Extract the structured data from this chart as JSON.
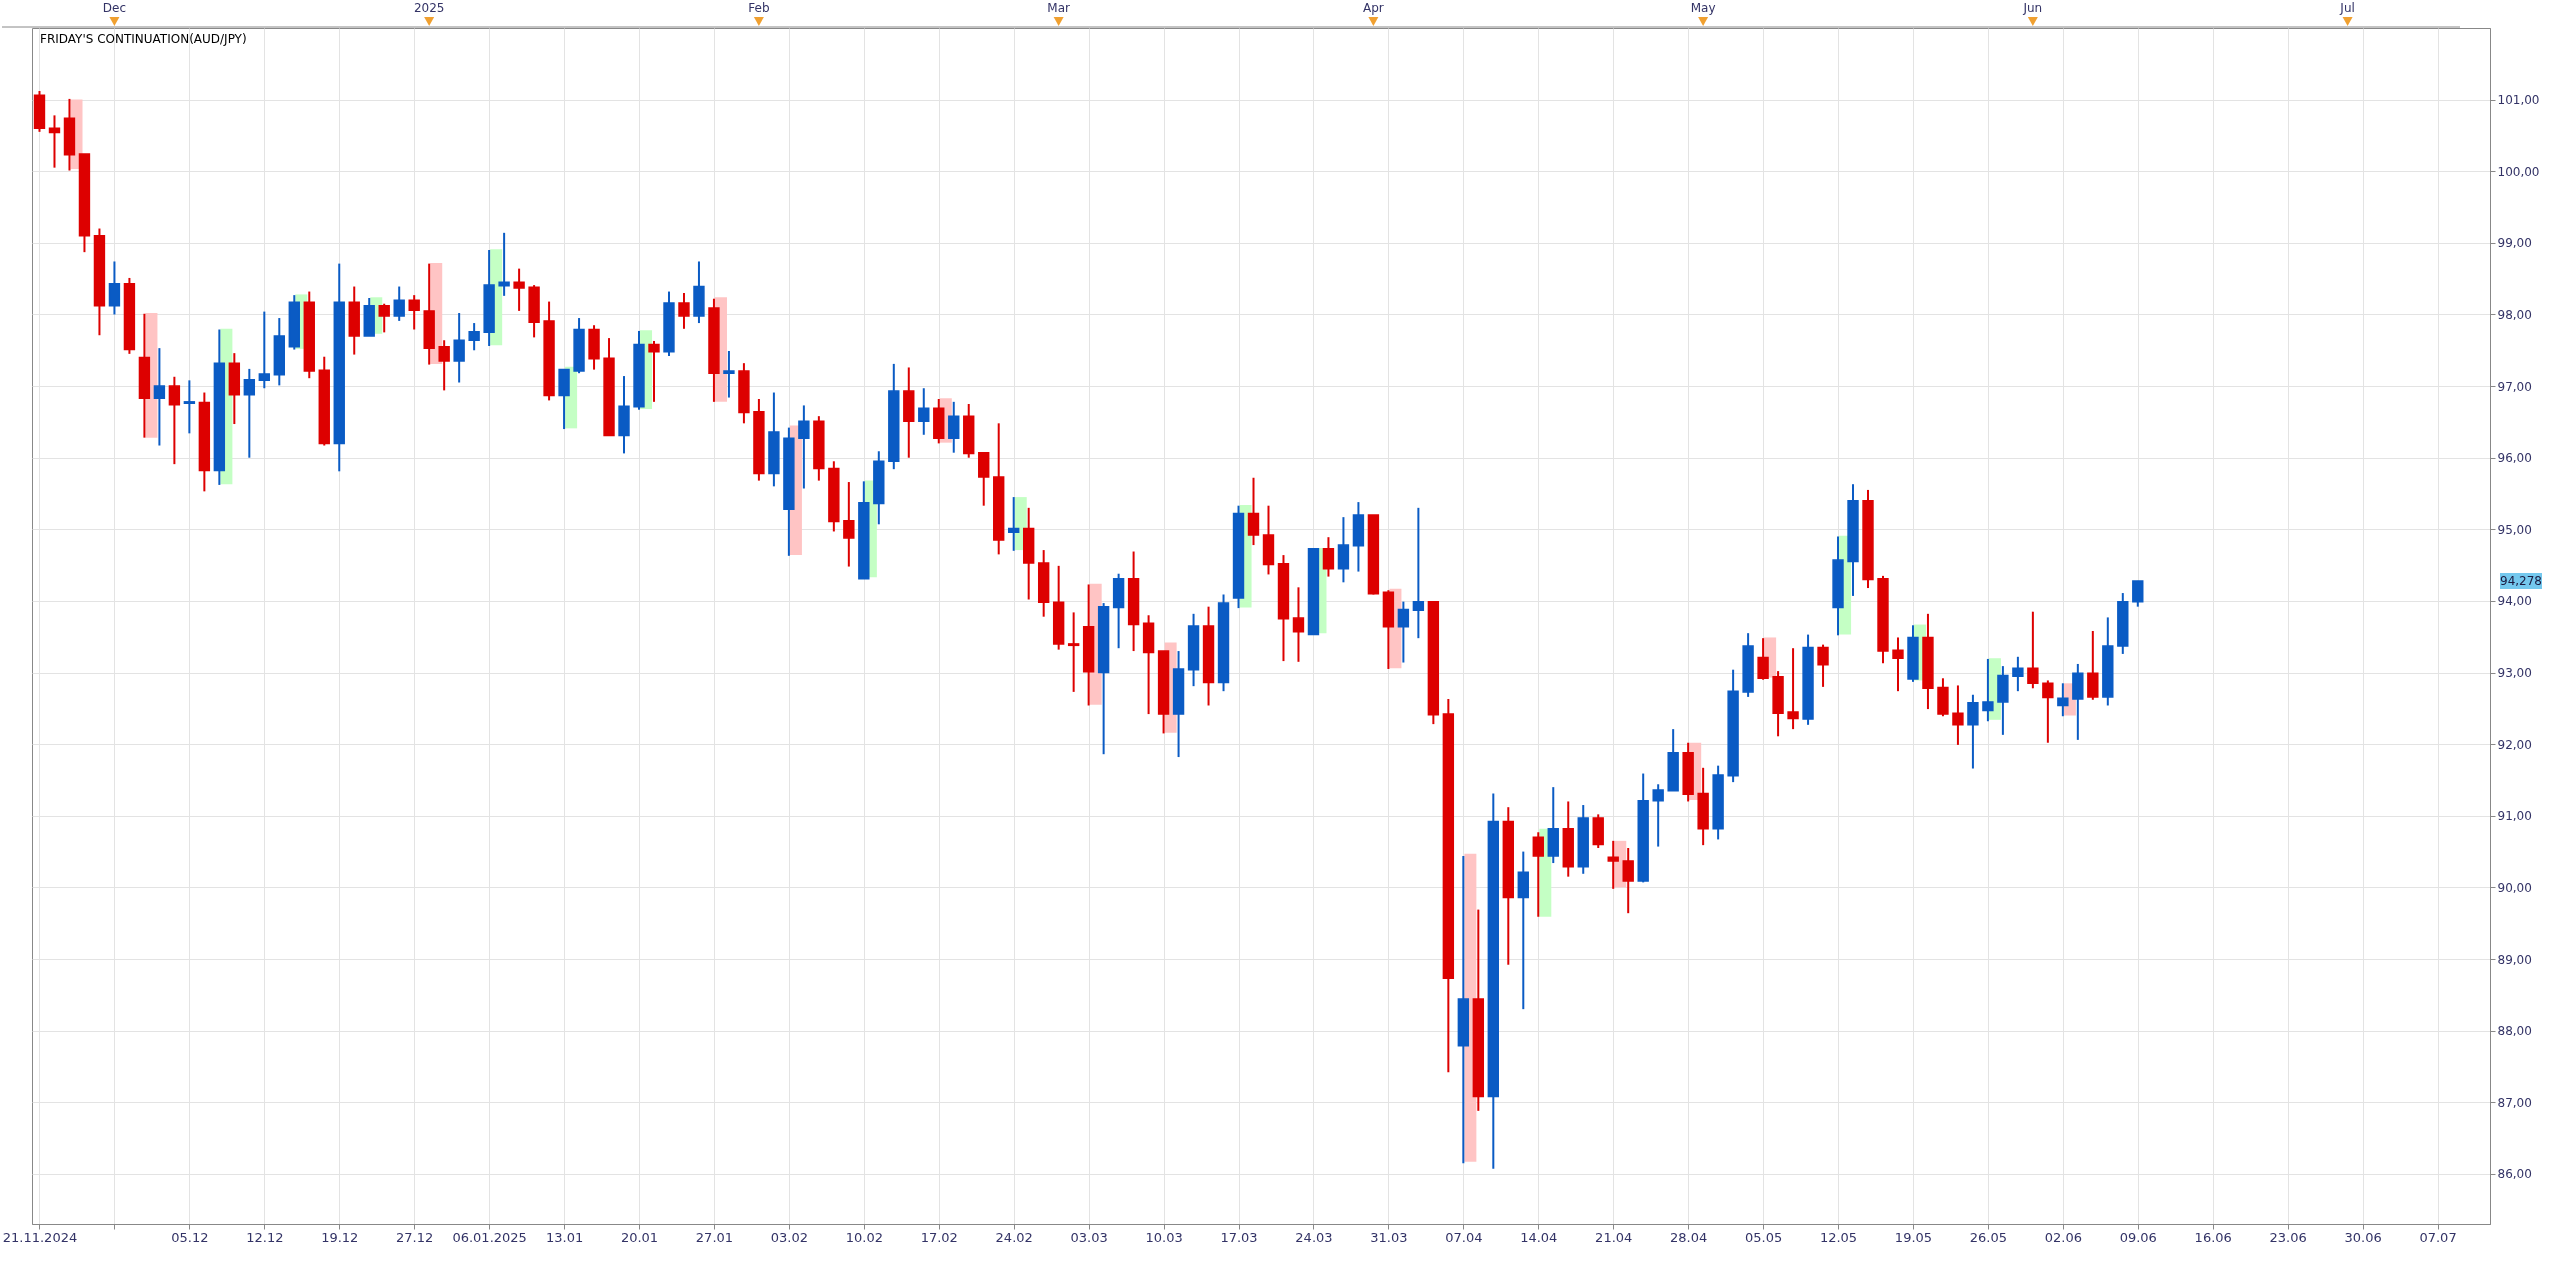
{
  "chart_data": {
    "type": "candlestick",
    "title": "FRIDAY'S CONTINUATION(AUD/JPY)",
    "categories": [
      "21.11.2024",
      null,
      null,
      null,
      null,
      null,
      null,
      null,
      null,
      null,
      "05.12",
      null,
      null,
      null,
      null,
      "12.12",
      null,
      null,
      null,
      null,
      "19.12",
      null,
      null,
      null,
      null,
      "27.12",
      null,
      null,
      null,
      null,
      "06.01.2025",
      null,
      null,
      null,
      null,
      "13.01",
      null,
      null,
      null,
      null,
      "20.01",
      null,
      null,
      null,
      null,
      "27.01",
      null,
      null,
      null,
      null,
      "03.02",
      null,
      null,
      null,
      null,
      "10.02",
      null,
      null,
      null,
      null,
      "17.02",
      null,
      null,
      null,
      null,
      "24.02",
      null,
      null,
      null,
      null,
      "03.03",
      null,
      null,
      null,
      null,
      "10.03",
      null,
      null,
      null,
      null,
      "17.03",
      null,
      null,
      null,
      null,
      "24.03",
      null,
      null,
      null,
      null,
      "31.03",
      null,
      null,
      null,
      null,
      "07.04",
      null,
      null,
      null,
      null,
      "14.04",
      null,
      null,
      null,
      null,
      "21.04",
      null,
      null,
      null,
      null,
      "28.04",
      null,
      null,
      null,
      null,
      "05.05",
      null,
      null,
      null,
      null,
      "12.05",
      null,
      null,
      null,
      null,
      "19.05",
      null,
      null,
      null,
      null,
      "26.05",
      null,
      null,
      null,
      null,
      "02.06",
      null,
      null,
      null,
      null,
      "09.06",
      null,
      null,
      null,
      null,
      "16.06",
      null,
      null,
      null,
      null,
      "23.06",
      null,
      null,
      null,
      null,
      "30.06",
      null,
      null,
      null,
      null,
      "07.07",
      null,
      null,
      null
    ],
    "series": [
      {
        "type": "bar",
        "base": [
          null,
          null,
          100.03,
          null,
          null,
          null,
          null,
          96.28,
          null,
          null,
          null,
          null,
          95.63,
          null,
          null,
          null,
          null,
          97.52,
          null,
          null,
          null,
          null,
          97.73,
          null,
          null,
          null,
          97.31,
          null,
          null,
          null,
          97.57,
          null,
          null,
          null,
          null,
          96.41,
          null,
          null,
          null,
          null,
          96.68,
          null,
          null,
          null,
          null,
          96.78,
          null,
          null,
          null,
          null,
          94.64,
          null,
          null,
          null,
          null,
          94.33,
          null,
          null,
          null,
          null,
          96.21,
          null,
          null,
          null,
          null,
          94.71,
          null,
          null,
          null,
          null,
          92.55,
          null,
          null,
          null,
          null,
          92.16,
          null,
          null,
          null,
          null,
          93.91,
          null,
          null,
          null,
          null,
          93.55,
          null,
          null,
          null,
          null,
          93.06,
          null,
          null,
          null,
          null,
          86.17,
          null,
          null,
          null,
          null,
          89.59,
          null,
          null,
          null,
          null,
          90.0,
          null,
          null,
          null,
          null,
          91.22,
          null,
          null,
          null,
          null,
          92.93,
          null,
          null,
          null,
          null,
          93.53,
          null,
          null,
          null,
          null,
          92.89,
          null,
          null,
          null,
          null,
          92.34,
          null,
          null,
          null,
          null,
          92.4,
          null,
          null,
          null,
          null,
          null,
          null,
          null,
          null,
          null,
          null,
          null,
          null,
          null,
          null,
          null,
          null,
          null,
          null,
          null,
          null,
          null,
          null,
          null,
          null,
          null,
          null,
          null,
          null
        ],
        "values": [
          null,
          null,
          0.97,
          null,
          null,
          null,
          null,
          1.74,
          null,
          null,
          null,
          null,
          2.17,
          null,
          null,
          null,
          null,
          0.76,
          null,
          null,
          null,
          null,
          0.51,
          null,
          null,
          null,
          1.41,
          null,
          null,
          null,
          1.34,
          null,
          null,
          null,
          null,
          0.86,
          null,
          null,
          null,
          null,
          1.1,
          null,
          null,
          null,
          null,
          1.46,
          null,
          null,
          null,
          null,
          1.81,
          null,
          null,
          null,
          null,
          1.35,
          null,
          null,
          null,
          null,
          0.62,
          null,
          null,
          null,
          null,
          0.74,
          null,
          null,
          null,
          null,
          1.69,
          null,
          null,
          null,
          null,
          1.26,
          null,
          null,
          null,
          null,
          1.43,
          null,
          null,
          null,
          null,
          1.19,
          null,
          null,
          null,
          null,
          1.11,
          null,
          null,
          null,
          null,
          4.3,
          null,
          null,
          null,
          null,
          1.23,
          null,
          null,
          null,
          null,
          0.65,
          null,
          null,
          null,
          null,
          0.8,
          null,
          null,
          null,
          null,
          0.56,
          null,
          null,
          null,
          null,
          1.38,
          null,
          null,
          null,
          null,
          0.78,
          null,
          null,
          null,
          null,
          0.86,
          null,
          null,
          null,
          null,
          0.45,
          null,
          null,
          null,
          null,
          null,
          null,
          null,
          null,
          null,
          null,
          null,
          null,
          null,
          null,
          null,
          null,
          null,
          null,
          null,
          null,
          null,
          null,
          null,
          null,
          null,
          null,
          null,
          null
        ],
        "colors": [
          null,
          null,
          "#ffc4c4",
          null,
          null,
          null,
          null,
          "#ffc4c4",
          null,
          null,
          null,
          null,
          "#c4ffc4",
          null,
          null,
          null,
          null,
          "#c4ffc4",
          null,
          null,
          null,
          null,
          "#c4ffc4",
          null,
          null,
          null,
          "#ffc4c4",
          null,
          null,
          null,
          "#c4ffc4",
          null,
          null,
          null,
          null,
          "#c4ffc4",
          null,
          null,
          null,
          null,
          "#c4ffc4",
          null,
          null,
          null,
          null,
          "#ffc4c4",
          null,
          null,
          null,
          null,
          "#ffc4c4",
          null,
          null,
          null,
          null,
          "#c4ffc4",
          null,
          null,
          null,
          null,
          "#ffc4c4",
          null,
          null,
          null,
          null,
          "#c4ffc4",
          null,
          null,
          null,
          null,
          "#ffc4c4",
          null,
          null,
          null,
          null,
          "#ffc4c4",
          null,
          null,
          null,
          null,
          "#c4ffc4",
          null,
          null,
          null,
          null,
          "#c4ffc4",
          null,
          null,
          null,
          null,
          "#ffc4c4",
          null,
          null,
          null,
          null,
          "#ffc4c4",
          null,
          null,
          null,
          null,
          "#c4ffc4",
          null,
          null,
          null,
          null,
          "#ffc4c4",
          null,
          null,
          null,
          null,
          "#ffc4c4",
          null,
          null,
          null,
          null,
          "#ffc4c4",
          null,
          null,
          null,
          null,
          "#c4ffc4",
          null,
          null,
          null,
          null,
          "#c4ffc4",
          null,
          null,
          null,
          null,
          "#c4ffc4",
          null,
          null,
          null,
          null,
          "#ffc4c4",
          null,
          null,
          null,
          null,
          null,
          null,
          null,
          null,
          null,
          null,
          null,
          null,
          null,
          null,
          null,
          null,
          null,
          null,
          null,
          null,
          null,
          null,
          null,
          null,
          null,
          null,
          null,
          null
        ]
      },
      {
        "ohlc": [
          [
            101.06,
            101.12,
            100.55,
            100.6
          ],
          [
            100.6,
            100.78,
            100.05,
            100.54
          ],
          [
            100.74,
            101.01,
            100.01,
            100.23
          ],
          [
            100.24,
            100.24,
            98.87,
            99.1
          ],
          [
            99.1,
            99.2,
            97.71,
            98.12
          ],
          [
            98.12,
            98.74,
            98.0,
            98.43
          ],
          [
            98.43,
            98.51,
            97.45,
            97.51
          ],
          [
            97.4,
            98.01,
            96.28,
            96.83
          ],
          [
            96.83,
            97.53,
            96.17,
            97.0
          ],
          [
            97.0,
            97.13,
            95.91,
            96.74
          ],
          [
            96.76,
            97.08,
            96.34,
            96.78
          ],
          [
            96.77,
            96.91,
            95.53,
            95.82
          ],
          [
            95.82,
            97.79,
            95.62,
            97.32
          ],
          [
            97.32,
            97.46,
            96.47,
            96.88
          ],
          [
            96.88,
            97.24,
            96.0,
            97.09
          ],
          [
            97.08,
            98.04,
            96.97,
            97.17
          ],
          [
            97.16,
            97.95,
            97.01,
            97.7
          ],
          [
            97.55,
            98.27,
            97.51,
            98.17
          ],
          [
            98.17,
            98.32,
            97.11,
            97.21
          ],
          [
            97.22,
            97.41,
            96.17,
            96.2
          ],
          [
            96.2,
            98.71,
            95.81,
            98.17
          ],
          [
            98.17,
            98.39,
            97.44,
            97.7
          ],
          [
            97.7,
            98.23,
            97.7,
            98.12
          ],
          [
            98.12,
            98.15,
            97.75,
            97.98
          ],
          [
            97.98,
            98.39,
            97.91,
            98.2
          ],
          [
            98.2,
            98.27,
            97.79,
            98.06
          ],
          [
            98.05,
            98.71,
            97.3,
            97.53
          ],
          [
            97.55,
            97.64,
            96.94,
            97.35
          ],
          [
            97.35,
            98.02,
            97.05,
            97.64
          ],
          [
            97.64,
            97.88,
            97.5,
            97.76
          ],
          [
            97.75,
            98.9,
            97.56,
            98.41
          ],
          [
            98.4,
            99.14,
            98.26,
            98.45
          ],
          [
            98.45,
            98.64,
            98.05,
            98.37
          ],
          [
            98.38,
            98.41,
            97.68,
            97.89
          ],
          [
            97.91,
            98.18,
            96.8,
            96.87
          ],
          [
            96.87,
            97.23,
            96.4,
            97.23
          ],
          [
            97.21,
            97.95,
            97.18,
            97.79
          ],
          [
            97.79,
            97.85,
            97.23,
            97.38
          ],
          [
            97.39,
            97.67,
            96.31,
            96.31
          ],
          [
            96.31,
            97.14,
            96.06,
            96.72
          ],
          [
            96.71,
            97.77,
            96.67,
            97.58
          ],
          [
            97.58,
            97.63,
            96.78,
            97.48
          ],
          [
            97.48,
            98.32,
            97.42,
            98.16
          ],
          [
            98.16,
            98.3,
            97.8,
            97.98
          ],
          [
            97.98,
            98.74,
            97.88,
            98.39
          ],
          [
            98.09,
            98.22,
            96.78,
            97.18
          ],
          [
            97.18,
            97.49,
            96.84,
            97.21
          ],
          [
            97.21,
            97.32,
            96.48,
            96.63
          ],
          [
            96.64,
            96.82,
            95.68,
            95.78
          ],
          [
            95.78,
            96.91,
            95.6,
            96.36
          ],
          [
            95.28,
            96.42,
            94.63,
            96.27
          ],
          [
            96.27,
            96.73,
            95.57,
            96.51
          ],
          [
            96.51,
            96.58,
            95.68,
            95.85
          ],
          [
            95.85,
            95.95,
            94.97,
            95.11
          ],
          [
            95.12,
            95.66,
            94.48,
            94.88
          ],
          [
            94.31,
            95.67,
            94.31,
            95.37
          ],
          [
            95.36,
            96.09,
            95.07,
            95.95
          ],
          [
            95.95,
            97.31,
            95.84,
            96.93
          ],
          [
            96.93,
            97.26,
            96.0,
            96.51
          ],
          [
            96.51,
            96.97,
            96.32,
            96.69
          ],
          [
            96.69,
            96.82,
            96.2,
            96.27
          ],
          [
            96.27,
            96.78,
            96.07,
            96.58
          ],
          [
            96.58,
            96.75,
            96.0,
            96.06
          ],
          [
            96.07,
            96.07,
            95.33,
            95.73
          ],
          [
            95.73,
            96.48,
            94.65,
            94.85
          ],
          [
            94.96,
            95.45,
            94.7,
            95.01
          ],
          [
            95.01,
            95.3,
            94.02,
            94.53
          ],
          [
            94.53,
            94.71,
            93.78,
            93.98
          ],
          [
            93.98,
            94.49,
            93.32,
            93.4
          ],
          [
            93.4,
            93.84,
            92.73,
            93.38
          ],
          [
            93.64,
            94.23,
            92.54,
            93.01
          ],
          [
            93.0,
            93.97,
            91.86,
            93.92
          ],
          [
            93.91,
            94.38,
            93.34,
            94.31
          ],
          [
            94.31,
            94.69,
            93.3,
            93.67
          ],
          [
            93.69,
            93.8,
            92.42,
            93.28
          ],
          [
            93.3,
            93.3,
            92.15,
            92.42
          ],
          [
            92.42,
            93.3,
            91.82,
            93.05
          ],
          [
            93.04,
            93.82,
            92.81,
            93.65
          ],
          [
            93.65,
            93.92,
            92.54,
            92.86
          ],
          [
            92.86,
            94.09,
            92.74,
            93.97
          ],
          [
            94.04,
            95.33,
            93.9,
            95.22
          ],
          [
            95.22,
            95.72,
            94.78,
            94.92
          ],
          [
            94.92,
            95.33,
            94.37,
            94.51
          ],
          [
            94.52,
            94.64,
            93.16,
            93.75
          ],
          [
            93.76,
            94.19,
            93.15,
            93.57
          ],
          [
            93.53,
            94.73,
            93.53,
            94.73
          ],
          [
            94.73,
            94.89,
            94.34,
            94.45
          ],
          [
            94.45,
            95.17,
            94.26,
            94.78
          ],
          [
            94.77,
            95.38,
            94.41,
            95.2
          ],
          [
            95.2,
            95.2,
            94.09,
            94.1
          ],
          [
            94.12,
            94.15,
            93.05,
            93.64
          ],
          [
            93.64,
            93.99,
            93.14,
            93.88
          ],
          [
            93.87,
            95.3,
            93.48,
            93.99
          ],
          [
            93.99,
            93.99,
            92.28,
            92.41
          ],
          [
            92.42,
            92.63,
            87.42,
            88.73
          ],
          [
            87.79,
            90.44,
            86.15,
            88.44
          ],
          [
            88.44,
            89.69,
            86.88,
            87.08
          ],
          [
            87.08,
            91.31,
            86.07,
            90.92
          ],
          [
            90.92,
            91.12,
            88.92,
            89.86
          ],
          [
            89.86,
            90.5,
            88.3,
            90.21
          ],
          [
            90.7,
            90.77,
            89.59,
            90.44
          ],
          [
            90.44,
            91.4,
            90.34,
            90.82
          ],
          [
            90.82,
            91.2,
            90.15,
            90.29
          ],
          [
            90.29,
            91.15,
            90.19,
            90.97
          ],
          [
            90.97,
            91.02,
            90.55,
            90.6
          ],
          [
            90.42,
            90.65,
            89.98,
            90.37
          ],
          [
            90.37,
            90.55,
            89.64,
            90.09
          ],
          [
            90.09,
            91.59,
            90.07,
            91.21
          ],
          [
            91.21,
            91.44,
            90.57,
            91.36
          ],
          [
            91.35,
            92.21,
            91.35,
            91.88
          ],
          [
            91.88,
            92.02,
            91.2,
            91.3
          ],
          [
            91.31,
            91.67,
            90.59,
            90.82
          ],
          [
            90.82,
            91.7,
            90.67,
            91.57
          ],
          [
            91.56,
            93.04,
            91.47,
            92.74
          ],
          [
            92.73,
            93.55,
            92.66,
            93.37
          ],
          [
            93.21,
            93.48,
            92.9,
            92.92
          ],
          [
            92.94,
            93.02,
            92.11,
            92.43
          ],
          [
            92.45,
            93.34,
            92.21,
            92.36
          ],
          [
            92.35,
            93.53,
            92.27,
            93.35
          ],
          [
            93.35,
            93.39,
            92.8,
            93.11
          ],
          [
            93.91,
            94.9,
            93.52,
            94.57
          ],
          [
            94.55,
            95.63,
            94.07,
            95.4
          ],
          [
            95.4,
            95.55,
            94.18,
            94.3
          ],
          [
            94.31,
            94.35,
            93.13,
            93.3
          ],
          [
            93.31,
            93.49,
            92.74,
            93.2
          ],
          [
            92.91,
            93.66,
            92.87,
            93.49
          ],
          [
            93.49,
            93.82,
            92.49,
            92.78
          ],
          [
            92.79,
            92.92,
            92.39,
            92.42
          ],
          [
            92.43,
            92.82,
            91.99,
            92.27
          ],
          [
            92.27,
            92.69,
            91.66,
            92.58
          ],
          [
            92.47,
            93.19,
            92.32,
            92.59
          ],
          [
            92.59,
            93.09,
            92.13,
            92.96
          ],
          [
            92.95,
            93.22,
            92.74,
            93.06
          ],
          [
            93.06,
            93.85,
            92.78,
            92.85
          ],
          [
            92.85,
            92.89,
            92.02,
            92.65
          ],
          [
            92.54,
            92.85,
            92.39,
            92.64
          ],
          [
            92.63,
            93.12,
            92.06,
            92.99
          ],
          [
            92.99,
            93.58,
            92.62,
            92.66
          ],
          [
            92.66,
            93.77,
            92.54,
            93.37
          ],
          [
            93.37,
            94.11,
            93.26,
            93.99
          ],
          [
            93.99,
            94.28,
            93.92,
            94.278
          ],
          null,
          null,
          null,
          null,
          null,
          null,
          null,
          null,
          null,
          null,
          null,
          null,
          null,
          null,
          null,
          null,
          null,
          null,
          null,
          null,
          null,
          null,
          null
        ],
        "colors": [
          "#dd0000",
          "#dd0000",
          "#dd0000",
          "#dd0000",
          "#dd0000",
          "#0a5bc4",
          "#dd0000",
          "#dd0000",
          "#0a5bc4",
          "#dd0000",
          "#0a5bc4",
          "#dd0000",
          "#0a5bc4",
          "#dd0000",
          "#0a5bc4",
          "#0a5bc4",
          "#0a5bc4",
          "#0a5bc4",
          "#dd0000",
          "#dd0000",
          "#0a5bc4",
          "#dd0000",
          "#0a5bc4",
          "#dd0000",
          "#0a5bc4",
          "#dd0000",
          "#dd0000",
          "#dd0000",
          "#0a5bc4",
          "#0a5bc4",
          "#0a5bc4",
          "#0a5bc4",
          "#dd0000",
          "#dd0000",
          "#dd0000",
          "#0a5bc4",
          "#0a5bc4",
          "#dd0000",
          "#dd0000",
          "#0a5bc4",
          "#0a5bc4",
          "#dd0000",
          "#0a5bc4",
          "#dd0000",
          "#0a5bc4",
          "#dd0000",
          "#0a5bc4",
          "#dd0000",
          "#dd0000",
          "#0a5bc4",
          "#0a5bc4",
          "#0a5bc4",
          "#dd0000",
          "#dd0000",
          "#dd0000",
          "#0a5bc4",
          "#0a5bc4",
          "#0a5bc4",
          "#dd0000",
          "#0a5bc4",
          "#dd0000",
          "#0a5bc4",
          "#dd0000",
          "#dd0000",
          "#dd0000",
          "#0a5bc4",
          "#dd0000",
          "#dd0000",
          "#dd0000",
          "#dd0000",
          "#dd0000",
          "#0a5bc4",
          "#0a5bc4",
          "#dd0000",
          "#dd0000",
          "#dd0000",
          "#0a5bc4",
          "#0a5bc4",
          "#dd0000",
          "#0a5bc4",
          "#0a5bc4",
          "#dd0000",
          "#dd0000",
          "#dd0000",
          "#dd0000",
          "#0a5bc4",
          "#dd0000",
          "#0a5bc4",
          "#0a5bc4",
          "#dd0000",
          "#dd0000",
          "#0a5bc4",
          "#0a5bc4",
          "#dd0000",
          "#dd0000",
          "#0a5bc4",
          "#dd0000",
          "#0a5bc4",
          "#dd0000",
          "#0a5bc4",
          "#dd0000",
          "#0a5bc4",
          "#dd0000",
          "#0a5bc4",
          "#dd0000",
          "#dd0000",
          "#dd0000",
          "#0a5bc4",
          "#0a5bc4",
          "#0a5bc4",
          "#dd0000",
          "#dd0000",
          "#0a5bc4",
          "#0a5bc4",
          "#0a5bc4",
          "#dd0000",
          "#dd0000",
          "#dd0000",
          "#0a5bc4",
          "#dd0000",
          "#0a5bc4",
          "#0a5bc4",
          "#dd0000",
          "#dd0000",
          "#dd0000",
          "#0a5bc4",
          "#dd0000",
          "#dd0000",
          "#dd0000",
          "#0a5bc4",
          "#0a5bc4",
          "#0a5bc4",
          "#0a5bc4",
          "#dd0000",
          "#dd0000",
          "#0a5bc4",
          "#0a5bc4",
          "#dd0000",
          "#0a5bc4",
          "#0a5bc4",
          "#0a5bc4",
          null,
          null,
          null,
          null,
          null,
          null,
          null,
          null,
          null,
          null,
          null,
          null,
          null,
          null,
          null,
          null,
          null,
          null,
          null,
          null,
          null,
          null,
          null
        ]
      }
    ],
    "ylim": [
      85.3,
      102.0
    ],
    "yticks": [
      {
        "value": 86,
        "label": "86,00"
      },
      {
        "value": 87,
        "label": "87,00"
      },
      {
        "value": 88,
        "label": "88,00"
      },
      {
        "value": 89,
        "label": "89,00"
      },
      {
        "value": 90,
        "label": "90,00"
      },
      {
        "value": 91,
        "label": "91,00"
      },
      {
        "value": 92,
        "label": "92,00"
      },
      {
        "value": 93,
        "label": "93,00"
      },
      {
        "value": 94,
        "label": "94,00"
      },
      {
        "value": 95,
        "label": "95,00"
      },
      {
        "value": 96,
        "label": "96,00"
      },
      {
        "value": 97,
        "label": "97,00"
      },
      {
        "value": 98,
        "label": "98,00"
      },
      {
        "value": 99,
        "label": "99,00"
      },
      {
        "value": 100,
        "label": "100,00"
      },
      {
        "value": 101,
        "label": "101,00"
      }
    ],
    "grid": true,
    "annotations": [
      "94,278",
      "Dec",
      "2025",
      "Feb",
      "Mar",
      "Apr",
      "May",
      "Jun",
      "Jul"
    ]
  }
}
